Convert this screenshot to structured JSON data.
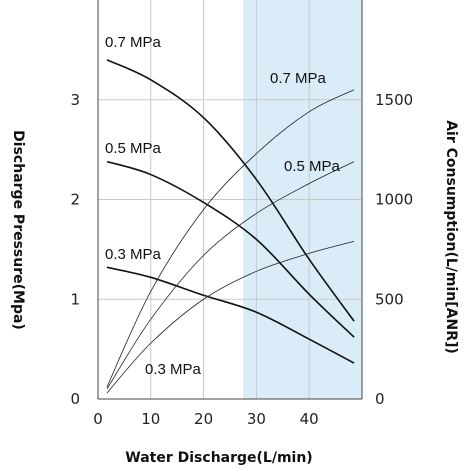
{
  "chart_data": {
    "type": "line",
    "xlabel": "Water Discharge(L/min)",
    "ylabel_left": "Discharge Pressure(Mpa)",
    "ylabel_right": "Air Consumption(L/min[ANR])",
    "xlim": [
      0,
      50
    ],
    "ylim_left": [
      0,
      4
    ],
    "ylim_right": [
      0,
      2000
    ],
    "x_ticks": [
      "0",
      "10",
      "20",
      "30",
      "40"
    ],
    "y_left_ticks": [
      "0",
      "1",
      "2",
      "3"
    ],
    "y_right_ticks": [
      "0",
      "500",
      "1000",
      "1500"
    ],
    "shaded_region_x": [
      27.5,
      50
    ],
    "shade_color": "#d9ecf8",
    "grid": true,
    "discharge_pressure_series": [
      {
        "label": "0.7 MPa",
        "x": [
          1.7,
          10,
          20,
          30,
          40,
          48.5
        ],
        "y": [
          3.4,
          3.2,
          2.82,
          2.2,
          1.4,
          0.78
        ]
      },
      {
        "label": "0.5 MPa",
        "x": [
          1.7,
          10,
          20,
          30,
          40,
          48.5
        ],
        "y": [
          2.38,
          2.25,
          1.97,
          1.6,
          1.05,
          0.62
        ]
      },
      {
        "label": "0.3 MPa",
        "x": [
          1.7,
          10,
          20,
          30,
          40,
          48.5
        ],
        "y": [
          1.32,
          1.22,
          1.04,
          0.87,
          0.6,
          0.36
        ]
      }
    ],
    "air_consumption_series": [
      {
        "label": "0.7 MPa",
        "x": [
          1.7,
          10,
          20,
          30,
          40,
          48.5
        ],
        "y": [
          60,
          540,
          950,
          1230,
          1440,
          1550
        ]
      },
      {
        "label": "0.5 MPa",
        "x": [
          1.7,
          10,
          20,
          30,
          40,
          48.5
        ],
        "y": [
          50,
          400,
          720,
          930,
          1080,
          1190
        ]
      },
      {
        "label": "0.3 MPa",
        "x": [
          1.7,
          10,
          20,
          30,
          40,
          48.5
        ],
        "y": [
          30,
          280,
          500,
          640,
          730,
          790
        ]
      }
    ]
  }
}
